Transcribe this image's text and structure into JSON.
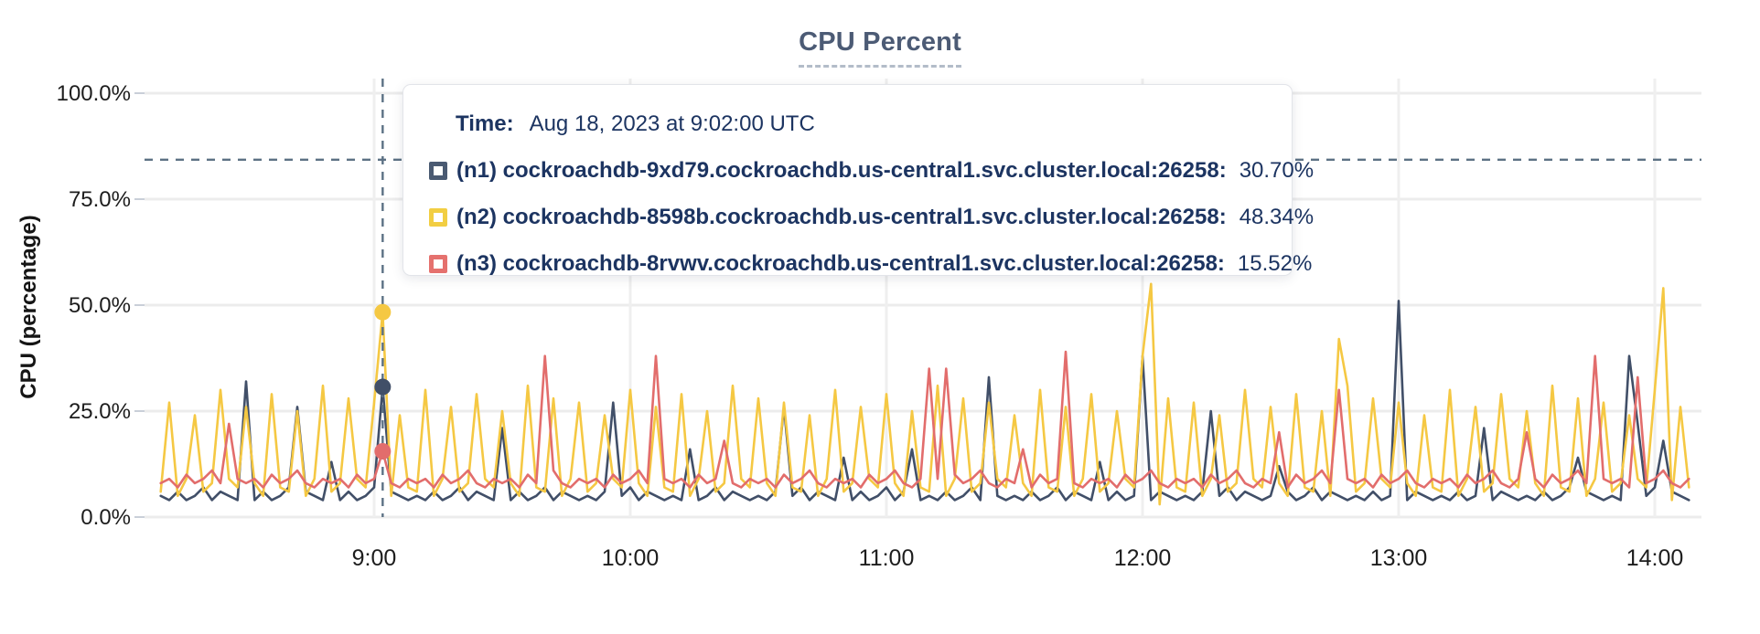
{
  "tooltip": {
    "time_label": "Time:",
    "time_value": "Aug 18, 2023 at 9:02:00 UTC",
    "rows": [
      {
        "name": "(n1) cockroachdb-9xd79.cockroachdb.us-central1.svc.cluster.local:26258:",
        "value": "30.70%",
        "color": "#4a5a72"
      },
      {
        "name": "(n2) cockroachdb-8598b.cockroachdb.us-central1.svc.cluster.local:26258:",
        "value": "48.34%",
        "color": "#f2ce42"
      },
      {
        "name": "(n3) cockroachdb-8rvwv.cockroachdb.us-central1.svc.cluster.local:26258:",
        "value": "15.52%",
        "color": "#e5716e"
      }
    ]
  },
  "chart_data": {
    "type": "line",
    "title": "CPU Percent",
    "ylabel": "CPU (percentage)",
    "ylim": [
      0,
      100
    ],
    "grid": true,
    "legend_position": "tooltip-only",
    "y_ticks": [
      "0.0%",
      "25.0%",
      "50.0%",
      "75.0%",
      "100.0%"
    ],
    "y_tick_values": [
      0,
      25,
      50,
      75,
      100
    ],
    "x_ticks": [
      "9:00",
      "10:00",
      "11:00",
      "12:00",
      "13:00",
      "14:00"
    ],
    "x_tick_minutes": [
      540,
      600,
      660,
      720,
      780,
      840
    ],
    "x_range_minutes": [
      490,
      848
    ],
    "x_step_minutes": 2,
    "hover": {
      "time_label": "9:02",
      "time_minutes": 542,
      "crosshair_y_percent": 84.3,
      "values": [
        30.7,
        48.34,
        15.52
      ],
      "crosshair_color": "#5c7184"
    },
    "colors": {
      "grid": "#ececec",
      "tick": "#c9cfd8",
      "axis_text": "#1d1d1d",
      "title": "#4c5b75"
    },
    "series": [
      {
        "name": "(n1) cockroachdb-9xd79.cockroachdb.us-central1.svc.cluster.local:26258",
        "color": "#414f68",
        "values": [
          5,
          4,
          6,
          4,
          5,
          7,
          4,
          6,
          5,
          4,
          32,
          4,
          6,
          4,
          5,
          7,
          26,
          6,
          5,
          4,
          13,
          4,
          6,
          4,
          5,
          7,
          30.7,
          6,
          5,
          4,
          5,
          4,
          6,
          4,
          5,
          7,
          4,
          6,
          5,
          4,
          21,
          4,
          6,
          4,
          5,
          7,
          4,
          6,
          5,
          4,
          5,
          4,
          6,
          27,
          5,
          7,
          4,
          6,
          5,
          4,
          5,
          4,
          16,
          4,
          5,
          7,
          4,
          6,
          5,
          4,
          5,
          4,
          6,
          26,
          5,
          7,
          4,
          6,
          5,
          4,
          14,
          4,
          6,
          4,
          5,
          7,
          4,
          6,
          16,
          4,
          5,
          4,
          6,
          4,
          5,
          7,
          4,
          33,
          5,
          4,
          5,
          4,
          6,
          4,
          5,
          7,
          4,
          6,
          5,
          4,
          13,
          4,
          6,
          4,
          5,
          38,
          4,
          6,
          5,
          4,
          5,
          4,
          6,
          25,
          5,
          7,
          4,
          6,
          5,
          4,
          5,
          12,
          6,
          4,
          5,
          7,
          4,
          6,
          5,
          4,
          5,
          4,
          6,
          4,
          5,
          51,
          4,
          6,
          5,
          4,
          5,
          4,
          6,
          4,
          5,
          21,
          4,
          6,
          5,
          4,
          5,
          4,
          6,
          4,
          5,
          7,
          14,
          6,
          5,
          4,
          5,
          4,
          38,
          22,
          5,
          7,
          18,
          6,
          5,
          4
        ]
      },
      {
        "name": "(n2) cockroachdb-8598b.cockroachdb.us-central1.svc.cluster.local:26258",
        "color": "#f5c843",
        "values": [
          6,
          27,
          5,
          9,
          24,
          6,
          8,
          30,
          9,
          7,
          26,
          8,
          5,
          29,
          7,
          6,
          25,
          5,
          9,
          31,
          6,
          8,
          28,
          9,
          7,
          27,
          48.3,
          5,
          24,
          7,
          6,
          30,
          5,
          9,
          26,
          6,
          8,
          29,
          9,
          7,
          25,
          8,
          5,
          31,
          7,
          6,
          28,
          5,
          9,
          27,
          6,
          8,
          24,
          9,
          7,
          30,
          8,
          5,
          26,
          7,
          6,
          29,
          5,
          9,
          25,
          6,
          8,
          31,
          9,
          7,
          28,
          8,
          5,
          27,
          7,
          6,
          24,
          5,
          9,
          30,
          6,
          8,
          26,
          9,
          7,
          29,
          8,
          5,
          25,
          7,
          6,
          31,
          5,
          9,
          28,
          6,
          8,
          27,
          9,
          7,
          24,
          8,
          5,
          30,
          7,
          6,
          26,
          5,
          9,
          29,
          6,
          8,
          25,
          9,
          7,
          38,
          55,
          3,
          28,
          7,
          6,
          27,
          5,
          9,
          24,
          6,
          8,
          30,
          9,
          7,
          26,
          8,
          5,
          29,
          7,
          6,
          25,
          5,
          42,
          31,
          6,
          8,
          28,
          9,
          7,
          27,
          8,
          5,
          24,
          7,
          6,
          30,
          5,
          9,
          26,
          6,
          8,
          29,
          9,
          7,
          25,
          8,
          5,
          31,
          7,
          6,
          28,
          5,
          9,
          27,
          6,
          8,
          24,
          9,
          7,
          30,
          54,
          4,
          26,
          7
        ]
      },
      {
        "name": "(n3) cockroachdb-8rvwv.cockroachdb.us-central1.svc.cluster.local:26258",
        "color": "#e26d6c",
        "values": [
          8,
          9,
          7,
          10,
          8,
          9,
          11,
          8,
          22,
          9,
          8,
          9,
          7,
          10,
          8,
          9,
          11,
          8,
          7,
          9,
          8,
          9,
          7,
          10,
          8,
          9,
          15.5,
          8,
          7,
          9,
          8,
          9,
          7,
          10,
          8,
          9,
          11,
          8,
          7,
          9,
          8,
          9,
          7,
          10,
          8,
          38,
          11,
          8,
          7,
          9,
          8,
          9,
          7,
          10,
          8,
          9,
          11,
          8,
          38,
          9,
          8,
          9,
          7,
          10,
          8,
          9,
          18,
          8,
          7,
          9,
          8,
          9,
          7,
          10,
          8,
          9,
          11,
          8,
          7,
          9,
          8,
          9,
          7,
          10,
          8,
          9,
          11,
          8,
          7,
          9,
          35,
          9,
          35,
          10,
          8,
          9,
          11,
          8,
          7,
          9,
          8,
          16,
          7,
          10,
          8,
          9,
          39,
          8,
          7,
          9,
          8,
          9,
          7,
          10,
          8,
          9,
          11,
          8,
          7,
          9,
          8,
          9,
          7,
          10,
          8,
          9,
          11,
          8,
          7,
          9,
          8,
          20,
          7,
          10,
          8,
          9,
          11,
          8,
          30,
          9,
          8,
          9,
          7,
          10,
          8,
          9,
          11,
          8,
          7,
          9,
          8,
          9,
          7,
          10,
          8,
          9,
          11,
          8,
          7,
          9,
          20,
          9,
          7,
          10,
          8,
          9,
          11,
          8,
          38,
          9,
          8,
          9,
          7,
          33,
          8,
          9,
          11,
          8,
          7,
          9
        ]
      }
    ]
  }
}
